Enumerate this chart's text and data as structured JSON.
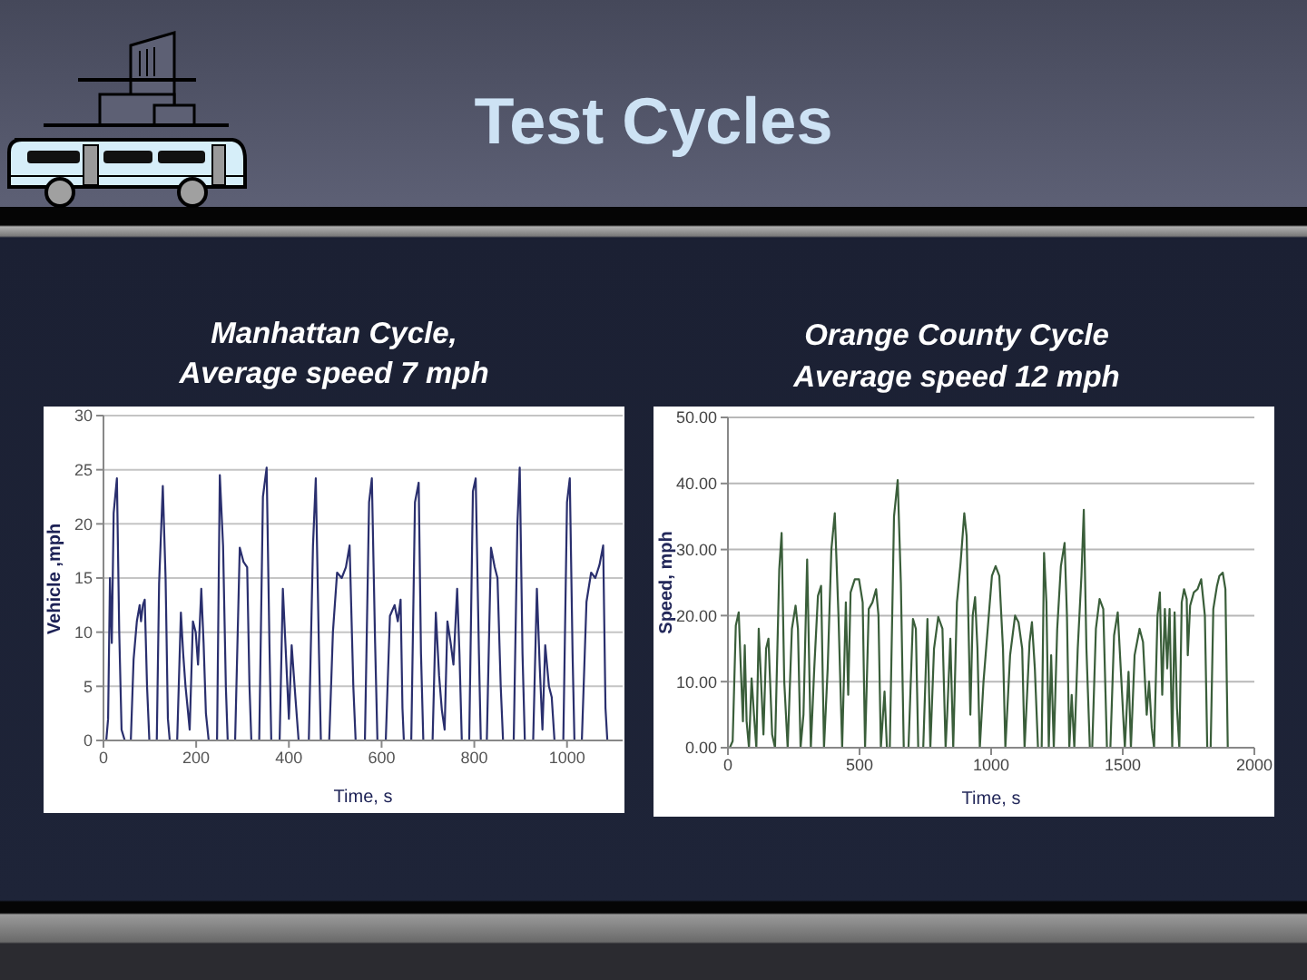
{
  "chart_data": [
    {
      "type": "line",
      "title": "Manhattan Cycle,\nAverage speed 7 mph",
      "annotations": [
        "Test Cycles"
      ],
      "xlabel": "Time, s",
      "ylabel": "Vehicle ,mph",
      "color": "#2a2f6e",
      "grid": "y",
      "xlim": [
        0,
        1120
      ],
      "xticks": [
        0,
        200,
        400,
        600,
        800,
        1000
      ],
      "ylim": [
        0,
        30
      ],
      "yticks": [
        0,
        5,
        10,
        15,
        20,
        25,
        30
      ],
      "x": [
        0,
        6,
        10,
        14,
        18,
        22,
        29,
        34,
        39,
        46,
        59,
        65,
        72,
        78,
        81,
        85,
        89,
        94,
        99,
        115,
        120,
        128,
        134,
        139,
        143,
        159,
        167,
        172,
        177,
        182,
        186,
        193,
        199,
        204,
        211,
        216,
        221,
        227,
        245,
        251,
        258,
        264,
        268,
        284,
        294,
        302,
        310,
        315,
        319,
        336,
        344,
        352,
        358,
        362,
        380,
        387,
        393,
        400,
        406,
        414,
        421,
        443,
        452,
        458,
        465,
        469,
        487,
        495,
        504,
        514,
        523,
        531,
        539,
        544,
        564,
        573,
        579,
        586,
        591,
        609,
        618,
        628,
        635,
        641,
        645,
        648,
        664,
        672,
        680,
        685,
        690,
        710,
        717,
        724,
        730,
        736,
        742,
        749,
        755,
        763,
        768,
        773,
        789,
        797,
        803,
        810,
        814,
        827,
        836,
        844,
        850,
        857,
        862,
        885,
        893,
        898,
        904,
        909,
        927,
        935,
        941,
        947,
        953,
        961,
        967,
        973,
        992,
        1000,
        1006,
        1012,
        1016,
        1032,
        1042,
        1052,
        1061,
        1070,
        1078,
        1083,
        1087
      ],
      "values": [
        0,
        0,
        2,
        15,
        9,
        21,
        24.2,
        10,
        1,
        0,
        0,
        7.5,
        11,
        12.5,
        11,
        12.5,
        13,
        5,
        0,
        0,
        14.5,
        23.5,
        15,
        2,
        0,
        0,
        11.8,
        8,
        5,
        2.8,
        1,
        11,
        10,
        7,
        14,
        9,
        2.5,
        0,
        0,
        24.5,
        18,
        5,
        0,
        0,
        17.8,
        16.5,
        16,
        5,
        0,
        0,
        22.5,
        25.2,
        9,
        0,
        0,
        14,
        8.5,
        2,
        8.8,
        4,
        0,
        0,
        18,
        24.2,
        8,
        0,
        0,
        10,
        15.5,
        15,
        16,
        18,
        5,
        0,
        0,
        22,
        24.2,
        9,
        0,
        0,
        11.5,
        12.5,
        11,
        13,
        3,
        0,
        0,
        22,
        23.8,
        8,
        0,
        0,
        11.8,
        6,
        2.8,
        1,
        11,
        9,
        7,
        14,
        8,
        0,
        0,
        23,
        24.2,
        8,
        0,
        0,
        17.8,
        16,
        15,
        5,
        0,
        0,
        20,
        25.2,
        8,
        0,
        0,
        14,
        7,
        1,
        8.8,
        5,
        4,
        0,
        0,
        22,
        24.2,
        8,
        0,
        0,
        12.8,
        15.5,
        15,
        16.2,
        18,
        3,
        0
      ]
    },
    {
      "type": "line",
      "title": "Orange County Cycle\nAverage speed 12 mph",
      "xlabel": "Time, s",
      "ylabel": "Speed, mph",
      "color": "#3a5e3a",
      "grid": "y",
      "xlim": [
        0,
        2000
      ],
      "xticks": [
        0,
        500,
        1000,
        1500,
        2000
      ],
      "ylim": [
        0,
        50
      ],
      "yticks": [
        {
          "value": 0,
          "label": "0.00"
        },
        {
          "value": 10,
          "label": "10.00"
        },
        {
          "value": 20,
          "label": "20.00"
        },
        {
          "value": 30,
          "label": "30.00"
        },
        {
          "value": 40,
          "label": "40.00"
        },
        {
          "value": 50,
          "label": "50.00"
        }
      ],
      "x": [
        0,
        7,
        18,
        30,
        41,
        48,
        57,
        64,
        71,
        80,
        90,
        99,
        108,
        117,
        126,
        135,
        145,
        154,
        168,
        179,
        195,
        204,
        214,
        227,
        243,
        257,
        266,
        276,
        287,
        301,
        315,
        328,
        342,
        354,
        365,
        379,
        393,
        406,
        420,
        434,
        448,
        457,
        466,
        482,
        498,
        512,
        521,
        535,
        549,
        563,
        572,
        581,
        595,
        604,
        615,
        631,
        645,
        657,
        668,
        686,
        703,
        714,
        723,
        742,
        758,
        769,
        783,
        799,
        815,
        827,
        833,
        845,
        856,
        870,
        884,
        898,
        907,
        921,
        930,
        939,
        948,
        957,
        971,
        985,
        1003,
        1017,
        1031,
        1045,
        1054,
        1072,
        1091,
        1104,
        1118,
        1127,
        1146,
        1155,
        1166,
        1178,
        1192,
        1201,
        1210,
        1219,
        1228,
        1238,
        1251,
        1265,
        1279,
        1288,
        1297,
        1306,
        1316,
        1329,
        1343,
        1352,
        1362,
        1375,
        1384,
        1398,
        1412,
        1426,
        1440,
        1453,
        1467,
        1481,
        1495,
        1508,
        1522,
        1531,
        1545,
        1564,
        1577,
        1591,
        1600,
        1610,
        1619,
        1632,
        1641,
        1650,
        1660,
        1669,
        1678,
        1688,
        1697,
        1706,
        1715,
        1724,
        1733,
        1743,
        1747,
        1756,
        1770,
        1784,
        1798,
        1812,
        1821,
        1834,
        1844,
        1858,
        1867,
        1880,
        1890,
        1899
      ],
      "values": [
        0,
        0,
        1,
        18.5,
        20.5,
        13,
        4,
        15.5,
        4,
        0,
        10.5,
        5,
        0,
        18,
        10,
        2,
        15,
        16.5,
        2,
        0,
        27,
        32.5,
        10,
        0,
        18,
        21.5,
        18,
        0,
        5,
        28.5,
        0,
        12,
        23,
        24.5,
        0,
        12,
        30,
        35.5,
        20,
        0,
        22,
        8,
        23.5,
        25.5,
        25.5,
        22,
        0,
        21,
        22,
        24,
        20,
        0,
        8.5,
        0,
        0,
        35,
        40.5,
        25,
        0,
        0,
        19.5,
        18,
        0,
        0,
        19.5,
        0,
        15,
        19.8,
        18,
        0,
        5,
        16.5,
        0,
        22,
        28,
        35.5,
        32,
        5,
        20,
        22.8,
        15,
        0,
        10,
        17,
        26,
        27.5,
        26,
        15,
        0,
        14,
        20,
        19,
        15,
        0,
        16,
        19,
        12,
        0,
        0,
        29.5,
        22,
        0,
        14,
        0,
        18,
        27.5,
        31,
        20,
        0,
        8,
        0,
        15,
        26,
        36,
        15,
        0,
        0,
        18,
        22.5,
        21,
        0,
        0,
        17,
        20.5,
        10,
        0,
        11.5,
        0,
        14,
        18,
        16,
        5,
        10,
        3,
        0,
        20,
        23.5,
        8,
        21,
        12,
        21,
        0,
        20.5,
        6,
        0,
        22,
        24,
        22.5,
        14,
        21.5,
        23.5,
        24,
        25.5,
        20,
        0,
        0,
        21,
        24.5,
        26,
        26.5,
        24,
        0
      ]
    }
  ]
}
